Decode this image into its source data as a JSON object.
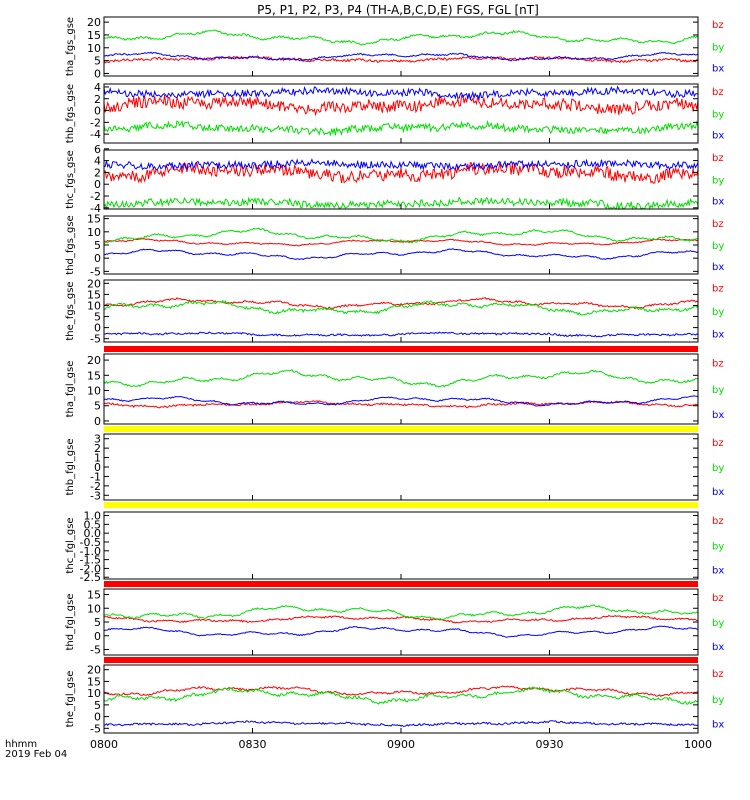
{
  "title": "P5, P1, P2, P3, P4 (TH-A,B,C,D,E) FGS, FGL [nT]",
  "footer": {
    "units_label": "hhmm",
    "date_label": "2019 Feb 04"
  },
  "colors": {
    "bx": "#0000ff",
    "by": "#00dd00",
    "bz": "#ff0000",
    "flag_red": "#ff0000",
    "flag_yellow": "#ffff00",
    "axis": "#000000"
  },
  "chart_data": {
    "type": "line",
    "x_ticks": [
      "0800",
      "0830",
      "0900",
      "0930",
      "1000"
    ],
    "x_range_minutes": [
      0,
      120
    ],
    "panels": [
      {
        "ylabel": "tha_fgs_gse",
        "ylim": [
          -1,
          22
        ],
        "yticks": [
          0,
          5,
          10,
          15,
          20
        ],
        "series": [
          {
            "name": "bz",
            "level": 5.5,
            "amp": 0.9,
            "noise": 0.5
          },
          {
            "name": "by",
            "level": 14,
            "amp": 2.5,
            "noise": 0.4
          },
          {
            "name": "bx",
            "level": 6.5,
            "amp": 1.5,
            "noise": 0.3
          }
        ]
      },
      {
        "ylabel": "thb_fgs_gse",
        "ylim": [
          -5.5,
          4.5
        ],
        "yticks": [
          -4,
          -2,
          0,
          2,
          4
        ],
        "series": [
          {
            "name": "bz",
            "level": 1,
            "amp": 0.9,
            "noise": 1.0
          },
          {
            "name": "by",
            "level": -3,
            "amp": 0.6,
            "noise": 0.6
          },
          {
            "name": "bx",
            "level": 3,
            "amp": 0.5,
            "noise": 0.6
          }
        ]
      },
      {
        "ylabel": "thc_fgs_gse",
        "ylim": [
          -4.2,
          5.8
        ],
        "yticks": [
          -4,
          -2,
          0,
          2,
          4,
          6
        ],
        "series": [
          {
            "name": "bz",
            "level": 2,
            "amp": 1.0,
            "noise": 1.0
          },
          {
            "name": "by",
            "level": -3.2,
            "amp": 0.5,
            "noise": 0.6
          },
          {
            "name": "bx",
            "level": 3.3,
            "amp": 0.4,
            "noise": 0.6
          }
        ]
      },
      {
        "ylabel": "thd_fgs_gse",
        "ylim": [
          -6,
          16
        ],
        "yticks": [
          -5,
          0,
          5,
          10,
          15
        ],
        "series": [
          {
            "name": "bz",
            "level": 6,
            "amp": 1.2,
            "noise": 0.2
          },
          {
            "name": "by",
            "level": 8.5,
            "amp": 2.5,
            "noise": 0.3
          },
          {
            "name": "bx",
            "level": 1.5,
            "amp": 1.8,
            "noise": 0.2
          }
        ]
      },
      {
        "ylabel": "the_fgs_gse",
        "ylim": [
          -6.5,
          21.5
        ],
        "yticks": [
          -5,
          0,
          5,
          10,
          15,
          20
        ],
        "series": [
          {
            "name": "bz",
            "level": 11,
            "amp": 2.0,
            "noise": 0.4
          },
          {
            "name": "by",
            "level": 9,
            "amp": 3.0,
            "noise": 0.6
          },
          {
            "name": "bx",
            "level": -3,
            "amp": 0.8,
            "noise": 0.4
          }
        ]
      },
      {
        "ylabel": "tha_fgl_gse",
        "ylim": [
          -1,
          22
        ],
        "yticks": [
          0,
          5,
          10,
          15,
          20
        ],
        "series": [
          {
            "name": "bz",
            "level": 5.5,
            "amp": 0.9,
            "noise": 0.3
          },
          {
            "name": "by",
            "level": 14,
            "amp": 2.5,
            "noise": 0.3
          },
          {
            "name": "bx",
            "level": 6.5,
            "amp": 1.5,
            "noise": 0.2
          }
        ]
      },
      {
        "ylabel": "thb_fgl_gse",
        "ylim": [
          -3.5,
          3.5
        ],
        "yticks": [
          -3,
          -2,
          -1,
          0,
          1,
          2,
          3
        ],
        "series": []
      },
      {
        "ylabel": "thc_fgl_gse",
        "ylim": [
          -2.6,
          1.2
        ],
        "yticks": [
          -2.5,
          -2.0,
          -1.5,
          -1.0,
          -0.5,
          0.0,
          0.5,
          1.0
        ],
        "series": []
      },
      {
        "ylabel": "thd_fgl_gse",
        "ylim": [
          -7,
          17
        ],
        "yticks": [
          -5,
          0,
          5,
          10,
          15
        ],
        "series": [
          {
            "name": "bz",
            "level": 6,
            "amp": 1.2,
            "noise": 0.3
          },
          {
            "name": "by",
            "level": 8.5,
            "amp": 2.5,
            "noise": 0.3
          },
          {
            "name": "bx",
            "level": 1.5,
            "amp": 1.8,
            "noise": 0.2
          }
        ]
      },
      {
        "ylabel": "the_fgl_gse",
        "ylim": [
          -7,
          22
        ],
        "yticks": [
          -5,
          0,
          5,
          10,
          15,
          20
        ],
        "series": [
          {
            "name": "bz",
            "level": 11,
            "amp": 2.0,
            "noise": 0.4
          },
          {
            "name": "by",
            "level": 9,
            "amp": 3.0,
            "noise": 0.6
          },
          {
            "name": "bx",
            "level": -3,
            "amp": 0.8,
            "noise": 0.4
          }
        ]
      }
    ],
    "legend": [
      "bz",
      "by",
      "bx"
    ],
    "flags": [
      "flag_red",
      "flag_yellow",
      "flag_yellow",
      "flag_red",
      "flag_red"
    ]
  }
}
